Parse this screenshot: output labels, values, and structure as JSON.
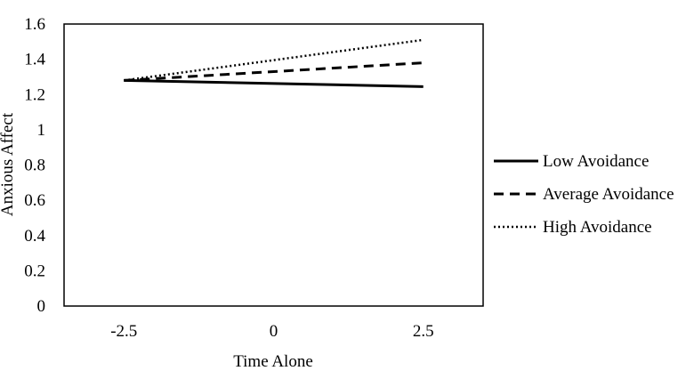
{
  "chart_data": {
    "type": "line",
    "title": "",
    "xlabel": "Time Alone",
    "ylabel": "Anxious Affect",
    "x": [
      -2.5,
      2.5
    ],
    "x_ticks": [
      "-2.5",
      "0",
      "2.5"
    ],
    "x_tick_values": [
      -2.5,
      0,
      2.5
    ],
    "y_ticks": [
      "0",
      "0.2",
      "0.4",
      "0.6",
      "0.8",
      "1",
      "1.2",
      "1.4",
      "1.6"
    ],
    "y_tick_values": [
      0,
      0.2,
      0.4,
      0.6,
      0.8,
      1,
      1.2,
      1.4,
      1.6
    ],
    "xlim": [
      -3.5,
      3.5
    ],
    "ylim": [
      0,
      1.6
    ],
    "grid": false,
    "legend_position": "right",
    "series": [
      {
        "name": "Low Avoidance",
        "values": [
          1.28,
          1.245
        ],
        "style": "solid",
        "color": "#000000"
      },
      {
        "name": "Average Avoidance",
        "values": [
          1.28,
          1.38
        ],
        "style": "dashed",
        "color": "#000000"
      },
      {
        "name": "High Avoidance",
        "values": [
          1.28,
          1.51
        ],
        "style": "dotted",
        "color": "#000000"
      }
    ]
  }
}
